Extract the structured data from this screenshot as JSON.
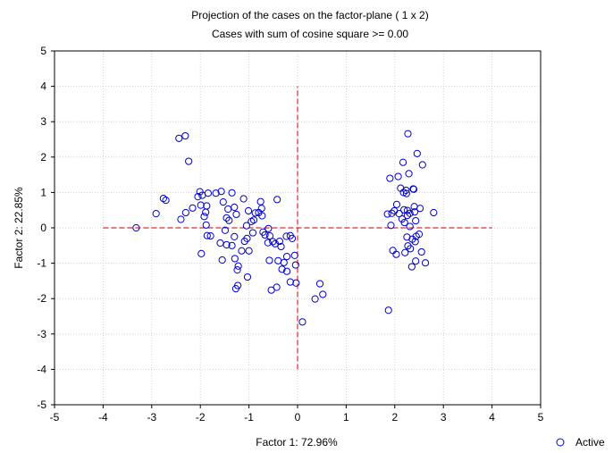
{
  "chart_data": {
    "type": "scatter",
    "title": "Projection of the cases on the factor-plane (  1 x   2)",
    "subtitle": "Cases with sum of cosine square >=  0.00",
    "xlabel": "Factor 1: 72.96%",
    "ylabel": "Factor 2: 22.85%",
    "xlim": [
      -5,
      5
    ],
    "ylim": [
      -5,
      5
    ],
    "x_ticks": [
      "-5",
      "-4",
      "-3",
      "-2",
      "-1",
      "0",
      "1",
      "2",
      "3",
      "4",
      "5"
    ],
    "y_ticks": [
      "-5",
      "-4",
      "-3",
      "-2",
      "-1",
      "0",
      "1",
      "2",
      "3",
      "4",
      "5"
    ],
    "grid": true,
    "reference_lines": {
      "horizontal": {
        "y": 0,
        "x_from": -4,
        "x_to": 4
      },
      "vertical": {
        "x": 0,
        "y_from": -4,
        "y_to": 4
      },
      "color": "#cc0000",
      "style": "dashed"
    },
    "legend": {
      "placement": "bottom-right",
      "entries": [
        "Active"
      ]
    },
    "marker_color": "#0000cc",
    "series": [
      {
        "name": "Active",
        "points": [
          [
            -3.32,
            0.0
          ],
          [
            -2.91,
            0.4
          ],
          [
            -2.76,
            0.83
          ],
          [
            -2.71,
            0.78
          ],
          [
            -2.44,
            2.53
          ],
          [
            -2.31,
            2.6
          ],
          [
            -2.24,
            1.88
          ],
          [
            -2.4,
            0.24
          ],
          [
            -2.3,
            0.43
          ],
          [
            -2.16,
            0.56
          ],
          [
            -2.05,
            0.88
          ],
          [
            -2.01,
            1.02
          ],
          [
            -1.96,
            0.92
          ],
          [
            -1.99,
            0.64
          ],
          [
            -1.87,
            0.62
          ],
          [
            -1.89,
            0.44
          ],
          [
            -1.92,
            0.32
          ],
          [
            -1.88,
            0.08
          ],
          [
            -1.86,
            -0.22
          ],
          [
            -1.79,
            -0.23
          ],
          [
            -1.98,
            -0.73
          ],
          [
            -1.84,
            0.98
          ],
          [
            -1.68,
            0.98
          ],
          [
            -1.57,
            1.03
          ],
          [
            -1.53,
            0.73
          ],
          [
            -1.46,
            0.28
          ],
          [
            -1.41,
            0.21
          ],
          [
            -1.43,
            0.53
          ],
          [
            -1.35,
            0.99
          ],
          [
            -1.3,
            0.58
          ],
          [
            -1.26,
            0.38
          ],
          [
            -1.49,
            -0.07
          ],
          [
            -1.3,
            -0.25
          ],
          [
            -1.59,
            -0.43
          ],
          [
            -1.46,
            -0.48
          ],
          [
            -1.55,
            -0.91
          ],
          [
            -1.35,
            -0.5
          ],
          [
            -1.29,
            -0.87
          ],
          [
            -1.24,
            -1.19
          ],
          [
            -1.22,
            -1.08
          ],
          [
            -1.27,
            -1.72
          ],
          [
            -1.23,
            -1.63
          ],
          [
            -1.15,
            -0.65
          ],
          [
            -1.09,
            -0.38
          ],
          [
            -1.04,
            -0.3
          ],
          [
            -1.05,
            0.06
          ],
          [
            -1.11,
            0.82
          ],
          [
            -1.01,
            0.48
          ],
          [
            -0.95,
            0.18
          ],
          [
            -0.9,
            0.22
          ],
          [
            -0.87,
            0.42
          ],
          [
            -1.03,
            -1.39
          ],
          [
            -1.0,
            -0.65
          ],
          [
            -0.92,
            -0.14
          ],
          [
            -0.8,
            0.43
          ],
          [
            -0.76,
            0.74
          ],
          [
            -0.74,
            0.55
          ],
          [
            -0.73,
            0.34
          ],
          [
            -0.71,
            -0.12
          ],
          [
            -0.67,
            -0.2
          ],
          [
            -0.6,
            -0.02
          ],
          [
            -0.57,
            -0.23
          ],
          [
            -0.61,
            -0.42
          ],
          [
            -0.51,
            -0.39
          ],
          [
            -0.46,
            -0.45
          ],
          [
            -0.58,
            -0.92
          ],
          [
            -0.54,
            -1.76
          ],
          [
            -0.43,
            -1.68
          ],
          [
            -0.37,
            -0.38
          ],
          [
            -0.34,
            -0.53
          ],
          [
            -0.4,
            -0.93
          ],
          [
            -0.28,
            -0.98
          ],
          [
            -0.32,
            -1.17
          ],
          [
            -0.22,
            -1.23
          ],
          [
            -0.22,
            -0.81
          ],
          [
            -0.23,
            -0.24
          ],
          [
            -0.15,
            -0.22
          ],
          [
            -0.11,
            -0.3
          ],
          [
            -0.06,
            -0.78
          ],
          [
            -0.04,
            -1.05
          ],
          [
            -0.15,
            -1.53
          ],
          [
            -0.03,
            -1.56
          ],
          [
            -0.42,
            0.8
          ],
          [
            0.1,
            -2.66
          ],
          [
            0.36,
            -2.01
          ],
          [
            0.46,
            -1.58
          ],
          [
            0.52,
            -1.88
          ],
          [
            1.87,
            -2.33
          ],
          [
            1.85,
            0.39
          ],
          [
            1.94,
            0.41
          ],
          [
            1.92,
            0.07
          ],
          [
            1.9,
            1.4
          ],
          [
            1.99,
            0.48
          ],
          [
            1.96,
            -0.64
          ],
          [
            2.03,
            -0.75
          ],
          [
            2.04,
            0.66
          ],
          [
            2.07,
            1.45
          ],
          [
            2.09,
            0.4
          ],
          [
            2.12,
            1.12
          ],
          [
            2.17,
            1.85
          ],
          [
            2.15,
            0.25
          ],
          [
            2.18,
            1.0
          ],
          [
            2.19,
            0.51
          ],
          [
            2.2,
            0.15
          ],
          [
            2.21,
            -0.7
          ],
          [
            2.23,
            1.06
          ],
          [
            2.24,
            0.97
          ],
          [
            2.26,
            0.49
          ],
          [
            2.26,
            0.35
          ],
          [
            2.25,
            -0.26
          ],
          [
            2.27,
            -0.51
          ],
          [
            2.27,
            2.66
          ],
          [
            2.29,
            1.53
          ],
          [
            2.31,
            0.41
          ],
          [
            2.31,
            0.04
          ],
          [
            2.32,
            -0.59
          ],
          [
            2.35,
            -1.1
          ],
          [
            2.36,
            -0.32
          ],
          [
            2.38,
            1.1
          ],
          [
            2.39,
            1.09
          ],
          [
            2.4,
            0.6
          ],
          [
            2.41,
            0.45
          ],
          [
            2.43,
            0.2
          ],
          [
            2.42,
            -0.39
          ],
          [
            2.43,
            -0.94
          ],
          [
            2.46,
            2.1
          ],
          [
            2.52,
            0.55
          ],
          [
            2.5,
            -0.18
          ],
          [
            2.55,
            -0.68
          ],
          [
            2.57,
            1.78
          ],
          [
            2.63,
            -0.99
          ],
          [
            2.8,
            0.43
          ],
          [
            2.44,
            -0.24
          ]
        ]
      }
    ]
  }
}
